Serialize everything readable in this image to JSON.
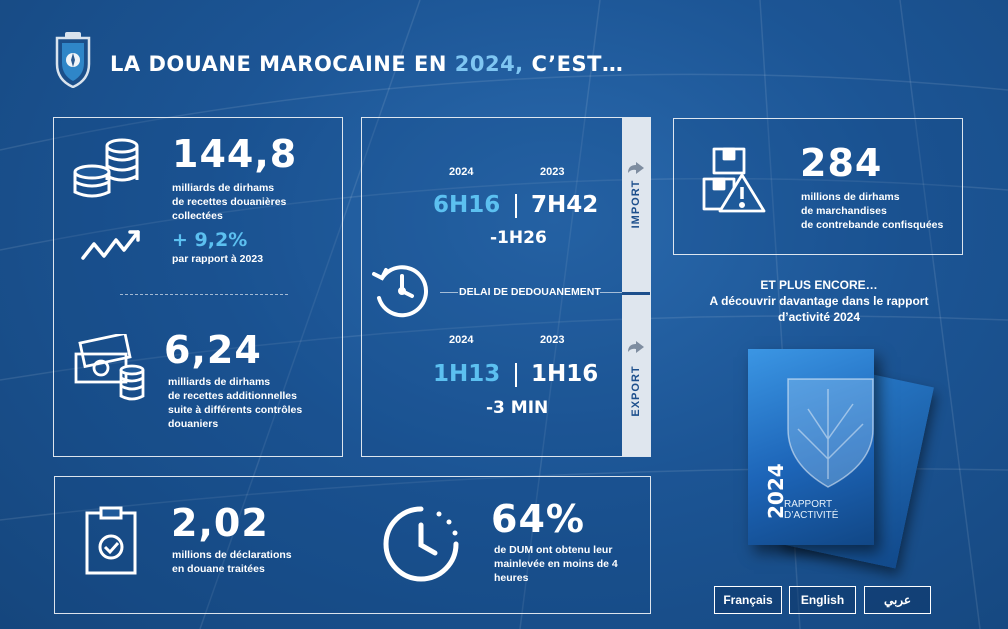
{
  "header": {
    "title_prefix": "LA DOUANE MAROCAINE EN ",
    "title_year": "2024,",
    "title_suffix": " C’EST…"
  },
  "revenue": {
    "value": "144,8",
    "desc": [
      "milliards de dirhams",
      "de recettes douanières",
      "collectées"
    ],
    "growth": "+ 9,2%",
    "growth_note": "par rapport à 2023"
  },
  "additional": {
    "value": "6,24",
    "desc": [
      "milliards de dirhams",
      "de recettes additionnelles",
      "suite à différents contrôles",
      "douaniers"
    ]
  },
  "clearance": {
    "center_label": "DELAI DE DEDOUANEMENT",
    "import": {
      "strip_label": "IMPORT",
      "year_current": "2024",
      "year_previous": "2023",
      "time_current": "6H16",
      "time_previous": "7H42",
      "difference": "-1H26"
    },
    "export": {
      "strip_label": "EXPORT",
      "year_current": "2024",
      "year_previous": "2023",
      "time_current": "1H13",
      "time_previous": "1H16",
      "difference": "-3 MIN"
    }
  },
  "seized": {
    "value": "284",
    "desc": [
      "millions de dirhams",
      "de marchandises",
      "de contrebande confisquées"
    ]
  },
  "more": {
    "title": "ET PLUS ENCORE…",
    "line1": "A découvrir davantage dans le rapport",
    "line2": "d’activité 2024"
  },
  "report_cover": {
    "year": "2024",
    "title_line1": "RAPPORT",
    "title_line2": "D’ACTIVITÉ"
  },
  "declarations": {
    "value": "2,02",
    "desc": [
      "millions de déclarations",
      "en douane traitées"
    ]
  },
  "dum": {
    "value": "64%",
    "desc": [
      "de DUM ont obtenu leur",
      "mainlevée en moins de 4",
      "heures"
    ]
  },
  "languages": [
    "Français",
    "English",
    "عربي"
  ],
  "colors": {
    "background": "#1c5595",
    "accent_blue": "#5cc0f0",
    "year_highlight": "#7fc6f2",
    "strip": "#dfe6ee"
  }
}
